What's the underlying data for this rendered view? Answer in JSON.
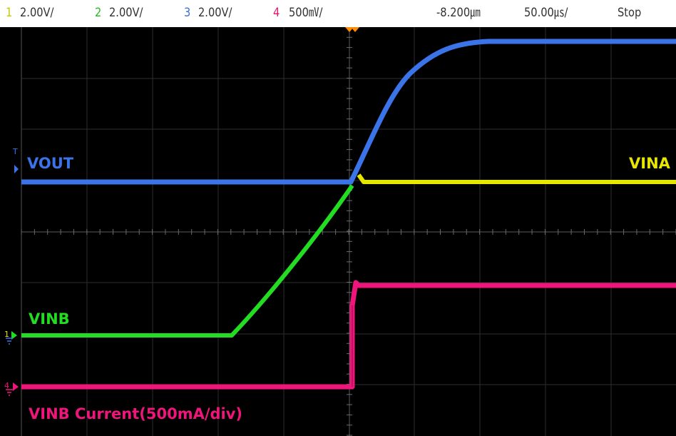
{
  "status_bar": {
    "ch1": {
      "number": "1",
      "scale": "2.00V/",
      "color": "#c8c800"
    },
    "ch2": {
      "number": "2",
      "scale": "2.00V/",
      "color": "#22bb22"
    },
    "ch3": {
      "number": "3",
      "scale": "2.00V/",
      "color": "#3a6fd8"
    },
    "ch4": {
      "number": "4",
      "scale": "500㎷/",
      "color": "#e0186e"
    },
    "trigger_delay": "-8.200㎛",
    "timebase": "50.00㎲/",
    "run_state": "Stop"
  },
  "labels": {
    "vout": "VOUT",
    "vina": "VINA",
    "vinb": "VINB",
    "vinb_current": "VINB Current(500mA/div)"
  },
  "markers": {
    "ch3_marker": "T",
    "ch2_marker": "1",
    "ch4_marker": "4"
  },
  "colors": {
    "ch1_yellow": "#e6e600",
    "ch2_green": "#22dd22",
    "ch3_blue": "#3a74e8",
    "ch4_pink": "#f0157a",
    "grid": "#5a5a5a",
    "trigger_orange": "#ff8c00"
  }
}
